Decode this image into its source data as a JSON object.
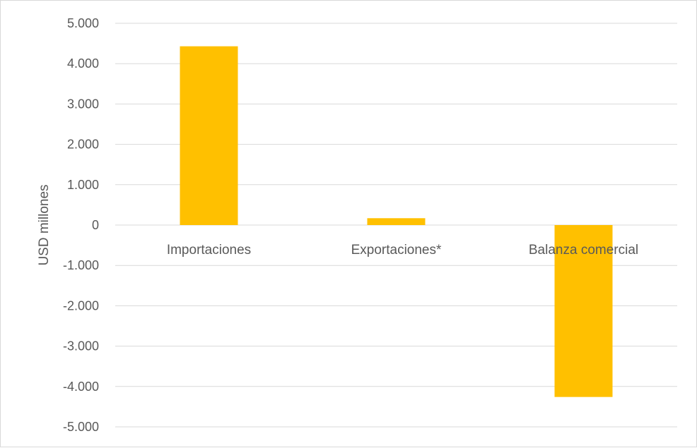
{
  "chart_data": {
    "type": "bar",
    "categories": [
      "Importaciones",
      "Exportaciones*",
      "Balanza comercial"
    ],
    "values": [
      4430,
      170,
      -4260
    ],
    "ylabel": "USD millones",
    "ylim": [
      -5000,
      5000
    ],
    "yticks": [
      5000,
      4000,
      3000,
      2000,
      1000,
      0,
      -1000,
      -2000,
      -3000,
      -4000,
      -5000
    ],
    "ytick_labels": [
      "5.000",
      "4.000",
      "3.000",
      "2.000",
      "1.000",
      "0",
      "-1.000",
      "-2.000",
      "-3.000",
      "-4.000",
      "-5.000"
    ],
    "grid": true,
    "bar_color": "#FFC000",
    "grid_color": "#D9D9D9"
  }
}
